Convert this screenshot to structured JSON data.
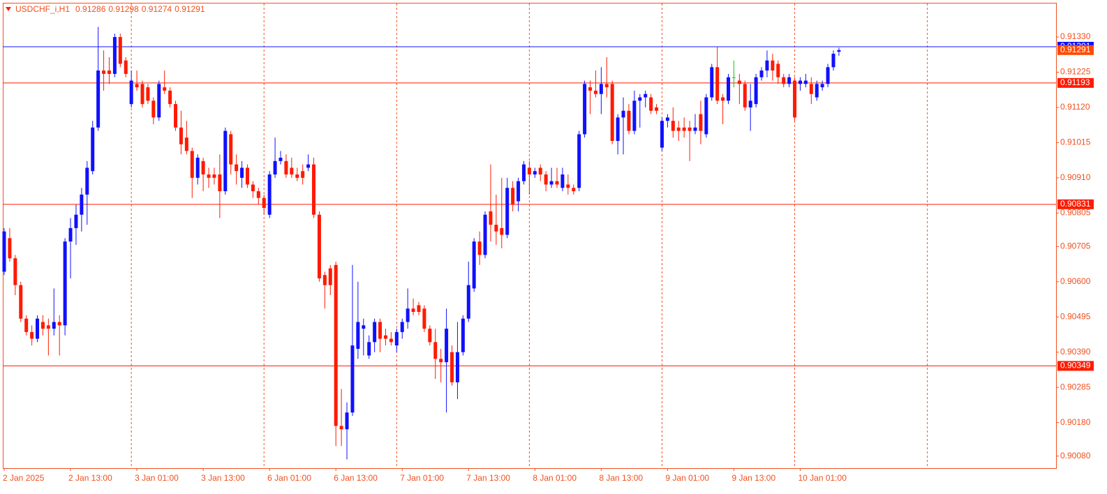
{
  "chart_data": {
    "type": "candlestick",
    "symbol": "USDCHF_i,H1",
    "colors": {
      "up": "#1010ff",
      "down": "#ff1a00",
      "flat": "#1fbf1f",
      "text": "#f0501e",
      "grid": "#f0501e"
    },
    "ylim": [
      0.90046,
      0.9143
    ],
    "yticks": [
      {
        "value": 0.9133,
        "label": "0.91330"
      },
      0.91225,
      {
        "value": 0.9112,
        "label": "0.91120"
      },
      0.91015,
      {
        "value": 0.9091,
        "label": "0.90910"
      },
      0.90805,
      0.90705,
      {
        "value": 0.906,
        "label": "0.90600"
      },
      0.90495,
      {
        "value": 0.9039,
        "label": "0.90390"
      },
      0.90285,
      {
        "value": 0.9018,
        "label": "0.90180"
      },
      {
        "value": 0.9008,
        "label": "0.90080"
      }
    ],
    "hlines": [
      {
        "value": 0.91301,
        "color": "#1010ff"
      },
      {
        "value": 0.91193,
        "color": "#ff1a00"
      },
      {
        "value": 0.90831,
        "color": "#ff1a00"
      },
      {
        "value": 0.90349,
        "color": "#ff1a00"
      }
    ],
    "categories": [
      "2 Jan 2025",
      null,
      null,
      null,
      null,
      null,
      null,
      null,
      null,
      null,
      null,
      null,
      "2 Jan 13:00",
      null,
      null,
      null,
      null,
      null,
      null,
      null,
      null,
      null,
      null,
      null,
      "3 Jan 01:00",
      null,
      null,
      null,
      null,
      null,
      null,
      null,
      null,
      null,
      null,
      null,
      "3 Jan 13:00",
      null,
      null,
      null,
      null,
      null,
      null,
      null,
      null,
      null,
      null,
      null,
      "6 Jan 01:00",
      null,
      null,
      null,
      null,
      null,
      null,
      null,
      null,
      null,
      null,
      null,
      "6 Jan 13:00",
      null,
      null,
      null,
      null,
      null,
      null,
      null,
      null,
      null,
      null,
      null,
      "7 Jan 01:00",
      null,
      null,
      null,
      null,
      null,
      null,
      null,
      null,
      null,
      null,
      null,
      "7 Jan 13:00",
      null,
      null,
      null,
      null,
      null,
      null,
      null,
      null,
      null,
      null,
      null,
      "8 Jan 01:00",
      null,
      null,
      null,
      null,
      null,
      null,
      null,
      null,
      null,
      null,
      null,
      "8 Jan 13:00",
      null,
      null,
      null,
      null,
      null,
      null,
      null,
      null,
      null,
      null,
      null,
      "9 Jan 01:00",
      null,
      null,
      null,
      null,
      null,
      null,
      null,
      null,
      null,
      null,
      null,
      "9 Jan 13:00",
      null,
      null,
      null,
      null,
      null,
      null,
      null,
      null,
      null,
      null,
      null,
      "10 Jan 01:00",
      null,
      null,
      null,
      null,
      null,
      null,
      null
    ],
    "ohlc": [
      [
        0.9063,
        0.9076,
        0.9062,
        0.9075
      ],
      [
        0.9073,
        0.9076,
        0.9066,
        0.9067
      ],
      [
        0.9067,
        0.9068,
        0.9056,
        0.9059
      ],
      [
        0.9059,
        0.906,
        0.9048,
        0.9049
      ],
      [
        0.9049,
        0.905,
        0.9044,
        0.9045
      ],
      [
        0.9045,
        0.9047,
        0.9041,
        0.9043
      ],
      [
        0.9043,
        0.905,
        0.9042,
        0.9049
      ],
      [
        0.9048,
        0.905,
        0.9044,
        0.9046
      ],
      [
        0.9047,
        0.9049,
        0.9038,
        0.9046
      ],
      [
        0.9046,
        0.9058,
        0.9044,
        0.9048
      ],
      [
        0.9048,
        0.905,
        0.9038,
        0.9047
      ],
      [
        0.9047,
        0.9073,
        0.9044,
        0.9072
      ],
      [
        0.9072,
        0.9079,
        0.9061,
        0.9076
      ],
      [
        0.9076,
        0.9083,
        0.9071,
        0.908
      ],
      [
        0.908,
        0.9088,
        0.9075,
        0.9086
      ],
      [
        0.9086,
        0.9096,
        0.9077,
        0.9094
      ],
      [
        0.9093,
        0.9108,
        0.9092,
        0.9106
      ],
      [
        0.9106,
        0.9136,
        0.9105,
        0.9123
      ],
      [
        0.9123,
        0.9129,
        0.9117,
        0.9122
      ],
      [
        0.9123,
        0.9127,
        0.9119,
        0.9122
      ],
      [
        0.9122,
        0.9134,
        0.9121,
        0.9133
      ],
      [
        0.9133,
        0.9134,
        0.9124,
        0.9125
      ],
      [
        0.9126,
        0.9127,
        0.9121,
        0.9122
      ],
      [
        0.9113,
        0.9123,
        0.9112,
        0.912
      ],
      [
        0.9119,
        0.9123,
        0.9117,
        0.9118
      ],
      [
        0.9119,
        0.912,
        0.9112,
        0.9113
      ],
      [
        0.9118,
        0.9119,
        0.9113,
        0.9114
      ],
      [
        0.9114,
        0.9115,
        0.9107,
        0.9109
      ],
      [
        0.9109,
        0.912,
        0.9108,
        0.9119
      ],
      [
        0.9118,
        0.9123,
        0.9116,
        0.9117
      ],
      [
        0.9117,
        0.9118,
        0.9112,
        0.9113
      ],
      [
        0.9113,
        0.9114,
        0.9105,
        0.9106
      ],
      [
        0.9106,
        0.9111,
        0.9098,
        0.9101
      ],
      [
        0.9103,
        0.9108,
        0.9098,
        0.9099
      ],
      [
        0.9099,
        0.91,
        0.9085,
        0.9091
      ],
      [
        0.9091,
        0.9098,
        0.9089,
        0.9097
      ],
      [
        0.9096,
        0.9097,
        0.9087,
        0.9092
      ],
      [
        0.9092,
        0.9094,
        0.9088,
        0.9091
      ],
      [
        0.9092,
        0.9094,
        0.9089,
        0.9091
      ],
      [
        0.9092,
        0.9098,
        0.9079,
        0.9087
      ],
      [
        0.9087,
        0.9106,
        0.9086,
        0.9105
      ],
      [
        0.9104,
        0.9105,
        0.9092,
        0.9095
      ],
      [
        0.9095,
        0.9098,
        0.9089,
        0.9093
      ],
      [
        0.9091,
        0.9096,
        0.9088,
        0.9094
      ],
      [
        0.9094,
        0.9095,
        0.9088,
        0.9089
      ],
      [
        0.9089,
        0.909,
        0.9085,
        0.9087
      ],
      [
        0.9087,
        0.9088,
        0.9083,
        0.9085
      ],
      [
        0.9085,
        0.9086,
        0.908,
        0.9082
      ],
      [
        0.908,
        0.9093,
        0.9079,
        0.9092
      ],
      [
        0.9092,
        0.9103,
        0.9091,
        0.9096
      ],
      [
        0.9096,
        0.9099,
        0.9095,
        0.9097
      ],
      [
        0.9096,
        0.9098,
        0.9091,
        0.9092
      ],
      [
        0.9094,
        0.9097,
        0.9091,
        0.9092
      ],
      [
        0.9092,
        0.9094,
        0.909,
        0.9091
      ],
      [
        0.9093,
        0.9095,
        0.9089,
        0.9091
      ],
      [
        0.9094,
        0.9098,
        0.9093,
        0.9095
      ],
      [
        0.9095,
        0.9097,
        0.9079,
        0.908
      ],
      [
        0.908,
        0.9081,
        0.906,
        0.9061
      ],
      [
        0.9062,
        0.9063,
        0.9052,
        0.9059
      ],
      [
        0.9064,
        0.9065,
        0.9056,
        0.9059
      ],
      [
        0.9065,
        0.9066,
        0.9011,
        0.9017
      ],
      [
        0.9017,
        0.9028,
        0.9011,
        0.9016
      ],
      [
        0.9016,
        0.9024,
        0.9007,
        0.9021
      ],
      [
        0.9021,
        0.9065,
        0.902,
        0.9041
      ],
      [
        0.904,
        0.906,
        0.9037,
        0.9048
      ],
      [
        0.9046,
        0.9049,
        0.9038,
        0.9047
      ],
      [
        0.9038,
        0.9044,
        0.9037,
        0.9042
      ],
      [
        0.9042,
        0.9049,
        0.9039,
        0.9048
      ],
      [
        0.9048,
        0.9049,
        0.9039,
        0.9043
      ],
      [
        0.9044,
        0.9046,
        0.9041,
        0.9043
      ],
      [
        0.9043,
        0.9045,
        0.9041,
        0.9042
      ],
      [
        0.9041,
        0.9046,
        0.9039,
        0.9045
      ],
      [
        0.9045,
        0.9049,
        0.9043,
        0.9048
      ],
      [
        0.9048,
        0.9058,
        0.9046,
        0.9052
      ],
      [
        0.9052,
        0.9055,
        0.905,
        0.9051
      ],
      [
        0.9053,
        0.9054,
        0.905,
        0.9051
      ],
      [
        0.9052,
        0.9053,
        0.9045,
        0.9046
      ],
      [
        0.9046,
        0.9047,
        0.9041,
        0.9042
      ],
      [
        0.9042,
        0.9046,
        0.9031,
        0.9037
      ],
      [
        0.9037,
        0.904,
        0.903,
        0.9036
      ],
      [
        0.9036,
        0.9052,
        0.9021,
        0.9046
      ],
      [
        0.9039,
        0.9041,
        0.9029,
        0.903
      ],
      [
        0.903,
        0.9048,
        0.9025,
        0.9039
      ],
      [
        0.9039,
        0.905,
        0.9038,
        0.9049
      ],
      [
        0.9049,
        0.9066,
        0.9048,
        0.9059
      ],
      [
        0.9058,
        0.9073,
        0.9057,
        0.9072
      ],
      [
        0.9072,
        0.9075,
        0.9065,
        0.9068
      ],
      [
        0.9068,
        0.9081,
        0.9067,
        0.908
      ],
      [
        0.9081,
        0.9095,
        0.9072,
        0.9077
      ],
      [
        0.9077,
        0.9086,
        0.9071,
        0.9075
      ],
      [
        0.9076,
        0.9091,
        0.907,
        0.9074
      ],
      [
        0.9074,
        0.9091,
        0.9073,
        0.9088
      ],
      [
        0.9088,
        0.909,
        0.9081,
        0.9083
      ],
      [
        0.9084,
        0.9091,
        0.9081,
        0.909
      ],
      [
        0.909,
        0.9096,
        0.9089,
        0.9095
      ],
      [
        0.9094,
        0.9096,
        0.9086,
        0.9092
      ],
      [
        0.9092,
        0.9094,
        0.9091,
        0.9093
      ],
      [
        0.9094,
        0.9095,
        0.909,
        0.9092
      ],
      [
        0.9092,
        0.9093,
        0.9087,
        0.9089
      ],
      [
        0.9089,
        0.9094,
        0.9088,
        0.909
      ],
      [
        0.909,
        0.9094,
        0.9088,
        0.9089
      ],
      [
        0.9088,
        0.9094,
        0.9087,
        0.9092
      ],
      [
        0.9089,
        0.9092,
        0.9086,
        0.9088
      ],
      [
        0.9088,
        0.9089,
        0.9086,
        0.9087
      ],
      [
        0.9088,
        0.9105,
        0.9087,
        0.9104
      ],
      [
        0.9104,
        0.912,
        0.9103,
        0.9119
      ],
      [
        0.9118,
        0.912,
        0.911,
        0.9117
      ],
      [
        0.9117,
        0.9123,
        0.9115,
        0.9116
      ],
      [
        0.9116,
        0.9124,
        0.911,
        0.9119
      ],
      [
        0.9119,
        0.9127,
        0.9115,
        0.9118
      ],
      [
        0.9119,
        0.912,
        0.9101,
        0.9102
      ],
      [
        0.9102,
        0.911,
        0.9098,
        0.9109
      ],
      [
        0.9109,
        0.9115,
        0.9098,
        0.9111
      ],
      [
        0.9111,
        0.9113,
        0.9104,
        0.9105
      ],
      [
        0.9105,
        0.9117,
        0.9104,
        0.9114
      ],
      [
        0.9114,
        0.9116,
        0.9106,
        0.9115
      ],
      [
        0.9115,
        0.9117,
        0.9112,
        0.9116
      ],
      [
        0.9115,
        0.9116,
        0.911,
        0.9111
      ],
      [
        0.9112,
        0.9113,
        0.911,
        0.9111
      ],
      [
        0.91,
        0.9109,
        0.9099,
        0.9108
      ],
      [
        0.9108,
        0.911,
        0.9106,
        0.9109
      ],
      [
        0.9108,
        0.9112,
        0.9103,
        0.9105
      ],
      [
        0.9106,
        0.9108,
        0.9102,
        0.9105
      ],
      [
        0.9106,
        0.9109,
        0.9103,
        0.9105
      ],
      [
        0.9106,
        0.9108,
        0.9096,
        0.9105
      ],
      [
        0.9105,
        0.911,
        0.9104,
        0.9106
      ],
      [
        0.911,
        0.9114,
        0.9101,
        0.9105
      ],
      [
        0.9104,
        0.9116,
        0.9103,
        0.9115
      ],
      [
        0.9115,
        0.9125,
        0.9114,
        0.9124
      ],
      [
        0.9124,
        0.913,
        0.9113,
        0.9114
      ],
      [
        0.9115,
        0.9116,
        0.9107,
        0.9114
      ],
      [
        0.9114,
        0.9122,
        0.9113,
        0.9121
      ],
      [
        0.9121,
        0.9126,
        0.9118,
        0.9121
      ],
      [
        0.912,
        0.9122,
        0.9113,
        0.9119
      ],
      [
        0.9119,
        0.912,
        0.9111,
        0.9112
      ],
      [
        0.9112,
        0.9119,
        0.9105,
        0.9114
      ],
      [
        0.9113,
        0.9122,
        0.9112,
        0.9121
      ],
      [
        0.9121,
        0.9124,
        0.912,
        0.9123
      ],
      [
        0.9123,
        0.9129,
        0.9121,
        0.9126
      ],
      [
        0.9126,
        0.9128,
        0.912,
        0.9123
      ],
      [
        0.9125,
        0.9126,
        0.9119,
        0.9121
      ],
      [
        0.9121,
        0.9122,
        0.9118,
        0.9119
      ],
      [
        0.9119,
        0.9122,
        0.9118,
        0.9121
      ],
      [
        0.912,
        0.9121,
        0.9108,
        0.9109
      ],
      [
        0.9119,
        0.9121,
        0.9117,
        0.912
      ],
      [
        0.9119,
        0.9122,
        0.9118,
        0.912
      ],
      [
        0.9119,
        0.9121,
        0.9113,
        0.9116
      ],
      [
        0.9115,
        0.912,
        0.9114,
        0.9119
      ],
      [
        0.9118,
        0.912,
        0.9117,
        0.9119
      ],
      [
        0.9119,
        0.9125,
        0.9118,
        0.9124
      ],
      [
        0.9124,
        0.9129,
        0.9123,
        0.9128
      ],
      [
        0.91286,
        0.91298,
        0.91274,
        0.91291
      ]
    ]
  }
}
